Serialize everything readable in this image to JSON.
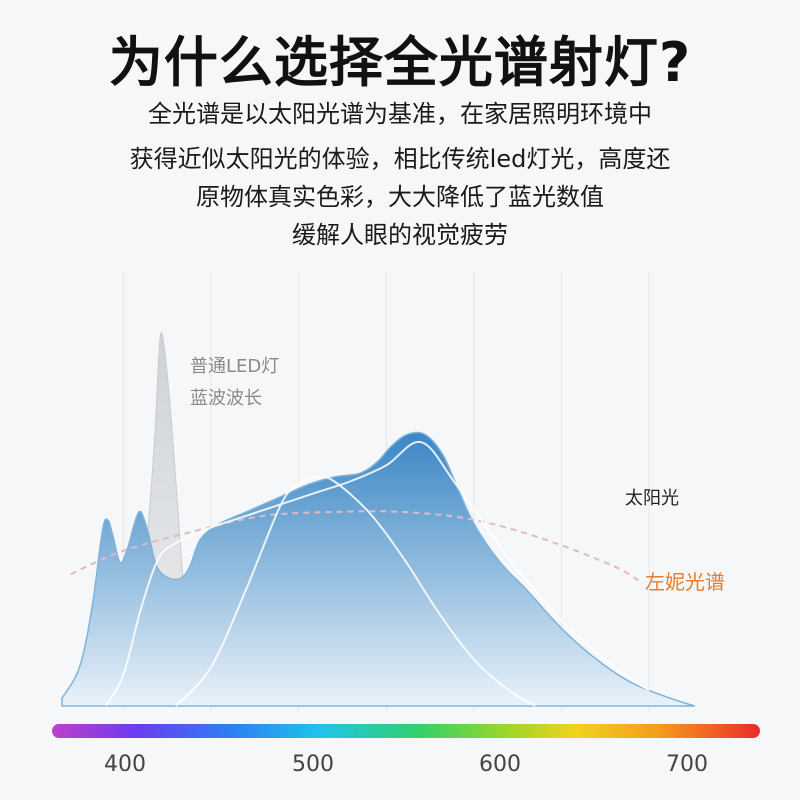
{
  "title": "为什么选择全光谱射灯?",
  "description": [
    "全光谱是以太阳光谱为基准，在家居照明环境中",
    "获得近似太阳光的体验，相比传统led灯光，高度还",
    "原物体真实色彩，大大降低了蓝光数值",
    "缓解人眼的视觉疲劳"
  ],
  "colors": {
    "full_spectrum_top": "#3a86c4",
    "full_spectrum_bottom": "#e9f2f9",
    "led_fill": "#d6d8da",
    "sunlight_curve": "#e2b8c6",
    "full_spectrum_label": "#e87b2a",
    "sunlight_label": "#222222",
    "led_label": "#8a8a8a"
  },
  "chart_data": {
    "type": "area",
    "xlabel": "",
    "ylabel": "",
    "x_ticks": [
      "400",
      "500",
      "600",
      "700"
    ],
    "xlim": [
      365,
      745
    ],
    "ylim": [
      0,
      100
    ],
    "grid": true,
    "series": [
      {
        "name": "左妮光谱",
        "style": "filled-area",
        "points": [
          [
            365,
            2
          ],
          [
            375,
            10
          ],
          [
            382,
            25
          ],
          [
            388,
            45
          ],
          [
            391,
            48
          ],
          [
            394,
            44
          ],
          [
            398,
            37
          ],
          [
            402,
            40
          ],
          [
            407,
            48
          ],
          [
            410,
            50
          ],
          [
            414,
            45
          ],
          [
            419,
            36
          ],
          [
            426,
            33
          ],
          [
            433,
            33
          ],
          [
            438,
            36
          ],
          [
            444,
            43
          ],
          [
            455,
            47
          ],
          [
            470,
            50
          ],
          [
            490,
            54
          ],
          [
            505,
            57
          ],
          [
            520,
            59
          ],
          [
            535,
            60
          ],
          [
            545,
            63
          ],
          [
            553,
            67
          ],
          [
            562,
            70
          ],
          [
            572,
            70
          ],
          [
            582,
            65
          ],
          [
            590,
            57
          ],
          [
            600,
            47
          ],
          [
            615,
            37
          ],
          [
            630,
            30
          ],
          [
            650,
            20
          ],
          [
            670,
            12
          ],
          [
            690,
            6
          ],
          [
            712,
            2
          ],
          [
            726,
            0
          ]
        ]
      },
      {
        "name": "普通LED灯 蓝波波长",
        "style": "gray-spike",
        "points": [
          [
            400,
            0
          ],
          [
            408,
            15
          ],
          [
            414,
            45
          ],
          [
            418,
            70
          ],
          [
            421,
            95
          ],
          [
            424,
            90
          ],
          [
            428,
            70
          ],
          [
            432,
            45
          ],
          [
            436,
            20
          ],
          [
            440,
            0
          ]
        ]
      },
      {
        "name": "太阳光",
        "style": "dashed",
        "points": [
          [
            370,
            34
          ],
          [
            400,
            40
          ],
          [
            440,
            45
          ],
          [
            480,
            49
          ],
          [
            520,
            50
          ],
          [
            560,
            50
          ],
          [
            600,
            48
          ],
          [
            640,
            43
          ],
          [
            680,
            36
          ],
          [
            695,
            32
          ]
        ]
      },
      {
        "name": "",
        "style": "white-line",
        "points": [
          [
            390,
            0
          ],
          [
            400,
            8
          ],
          [
            410,
            25
          ],
          [
            420,
            38
          ],
          [
            430,
            42
          ],
          [
            440,
            44
          ],
          [
            450,
            46
          ],
          [
            470,
            49
          ],
          [
            490,
            52
          ],
          [
            510,
            55
          ],
          [
            530,
            58
          ],
          [
            550,
            62
          ],
          [
            570,
            68
          ],
          [
            590,
            57
          ],
          [
            620,
            38
          ],
          [
            650,
            22
          ],
          [
            680,
            10
          ],
          [
            700,
            4
          ]
        ]
      },
      {
        "name": "",
        "style": "white-line",
        "points": [
          [
            430,
            0
          ],
          [
            450,
            10
          ],
          [
            470,
            30
          ],
          [
            490,
            52
          ],
          [
            500,
            57
          ],
          [
            510,
            59
          ],
          [
            520,
            58
          ],
          [
            540,
            50
          ],
          [
            560,
            38
          ],
          [
            580,
            24
          ],
          [
            600,
            12
          ],
          [
            620,
            4
          ],
          [
            635,
            0
          ]
        ]
      }
    ],
    "annotations": [
      "普通LED灯",
      "蓝波波长",
      "太阳光",
      "左妮光谱"
    ]
  }
}
